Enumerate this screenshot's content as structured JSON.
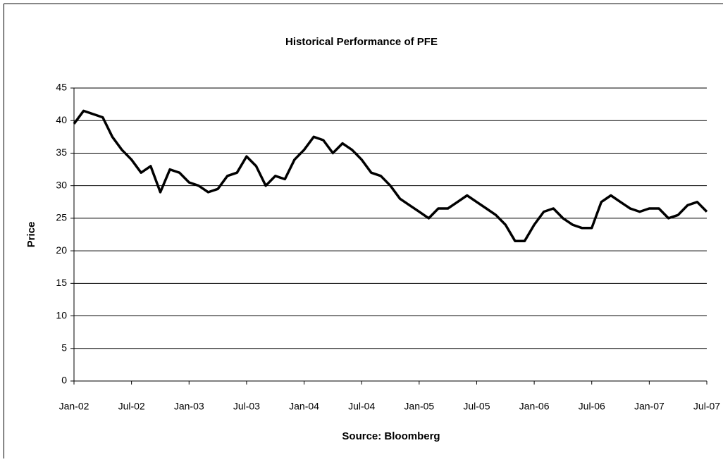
{
  "chart_data": {
    "type": "line",
    "title": "Historical Performance of PFE",
    "y_label": "Price",
    "x_label": "Source: Bloomberg",
    "categories": [
      "Jan-02",
      null,
      null,
      null,
      null,
      null,
      "Jul-02",
      null,
      null,
      null,
      null,
      null,
      "Jan-03",
      null,
      null,
      null,
      null,
      null,
      "Jul-03",
      null,
      null,
      null,
      null,
      null,
      "Jan-04",
      null,
      null,
      null,
      null,
      null,
      "Jul-04",
      null,
      null,
      null,
      null,
      null,
      "Jan-05",
      null,
      null,
      null,
      null,
      null,
      "Jul-05",
      null,
      null,
      null,
      null,
      null,
      "Jan-06",
      null,
      null,
      null,
      null,
      null,
      "Jul-06",
      null,
      null,
      null,
      null,
      null,
      "Jan-07",
      null,
      null,
      null,
      null,
      null,
      "Jul-07"
    ],
    "series": [
      {
        "name": "PFE",
        "color": "#000000",
        "values": [
          39.5,
          41.5,
          41,
          40.5,
          37.5,
          35.5,
          34,
          32,
          33,
          29,
          32.5,
          32,
          30.5,
          30,
          29,
          29.5,
          31.5,
          32,
          34.5,
          33,
          30,
          31.5,
          31,
          34,
          35.5,
          37.5,
          37,
          35,
          36.5,
          35.5,
          34,
          32,
          31.5,
          30,
          28,
          27,
          26,
          25,
          26.5,
          26.5,
          27.5,
          28.5,
          27.5,
          26.5,
          25.5,
          24,
          21.5,
          21.5,
          24,
          26,
          26.5,
          25,
          24,
          23.5,
          23.5,
          27.5,
          28.5,
          27.5,
          26.5,
          26,
          26.5,
          26.5,
          25,
          25.5,
          27,
          27.5,
          26
        ]
      }
    ],
    "ylim": [
      0,
      45
    ],
    "yticks": [
      0,
      5,
      10,
      15,
      20,
      25,
      30,
      35,
      40,
      45
    ],
    "grid": true,
    "legend": false
  }
}
